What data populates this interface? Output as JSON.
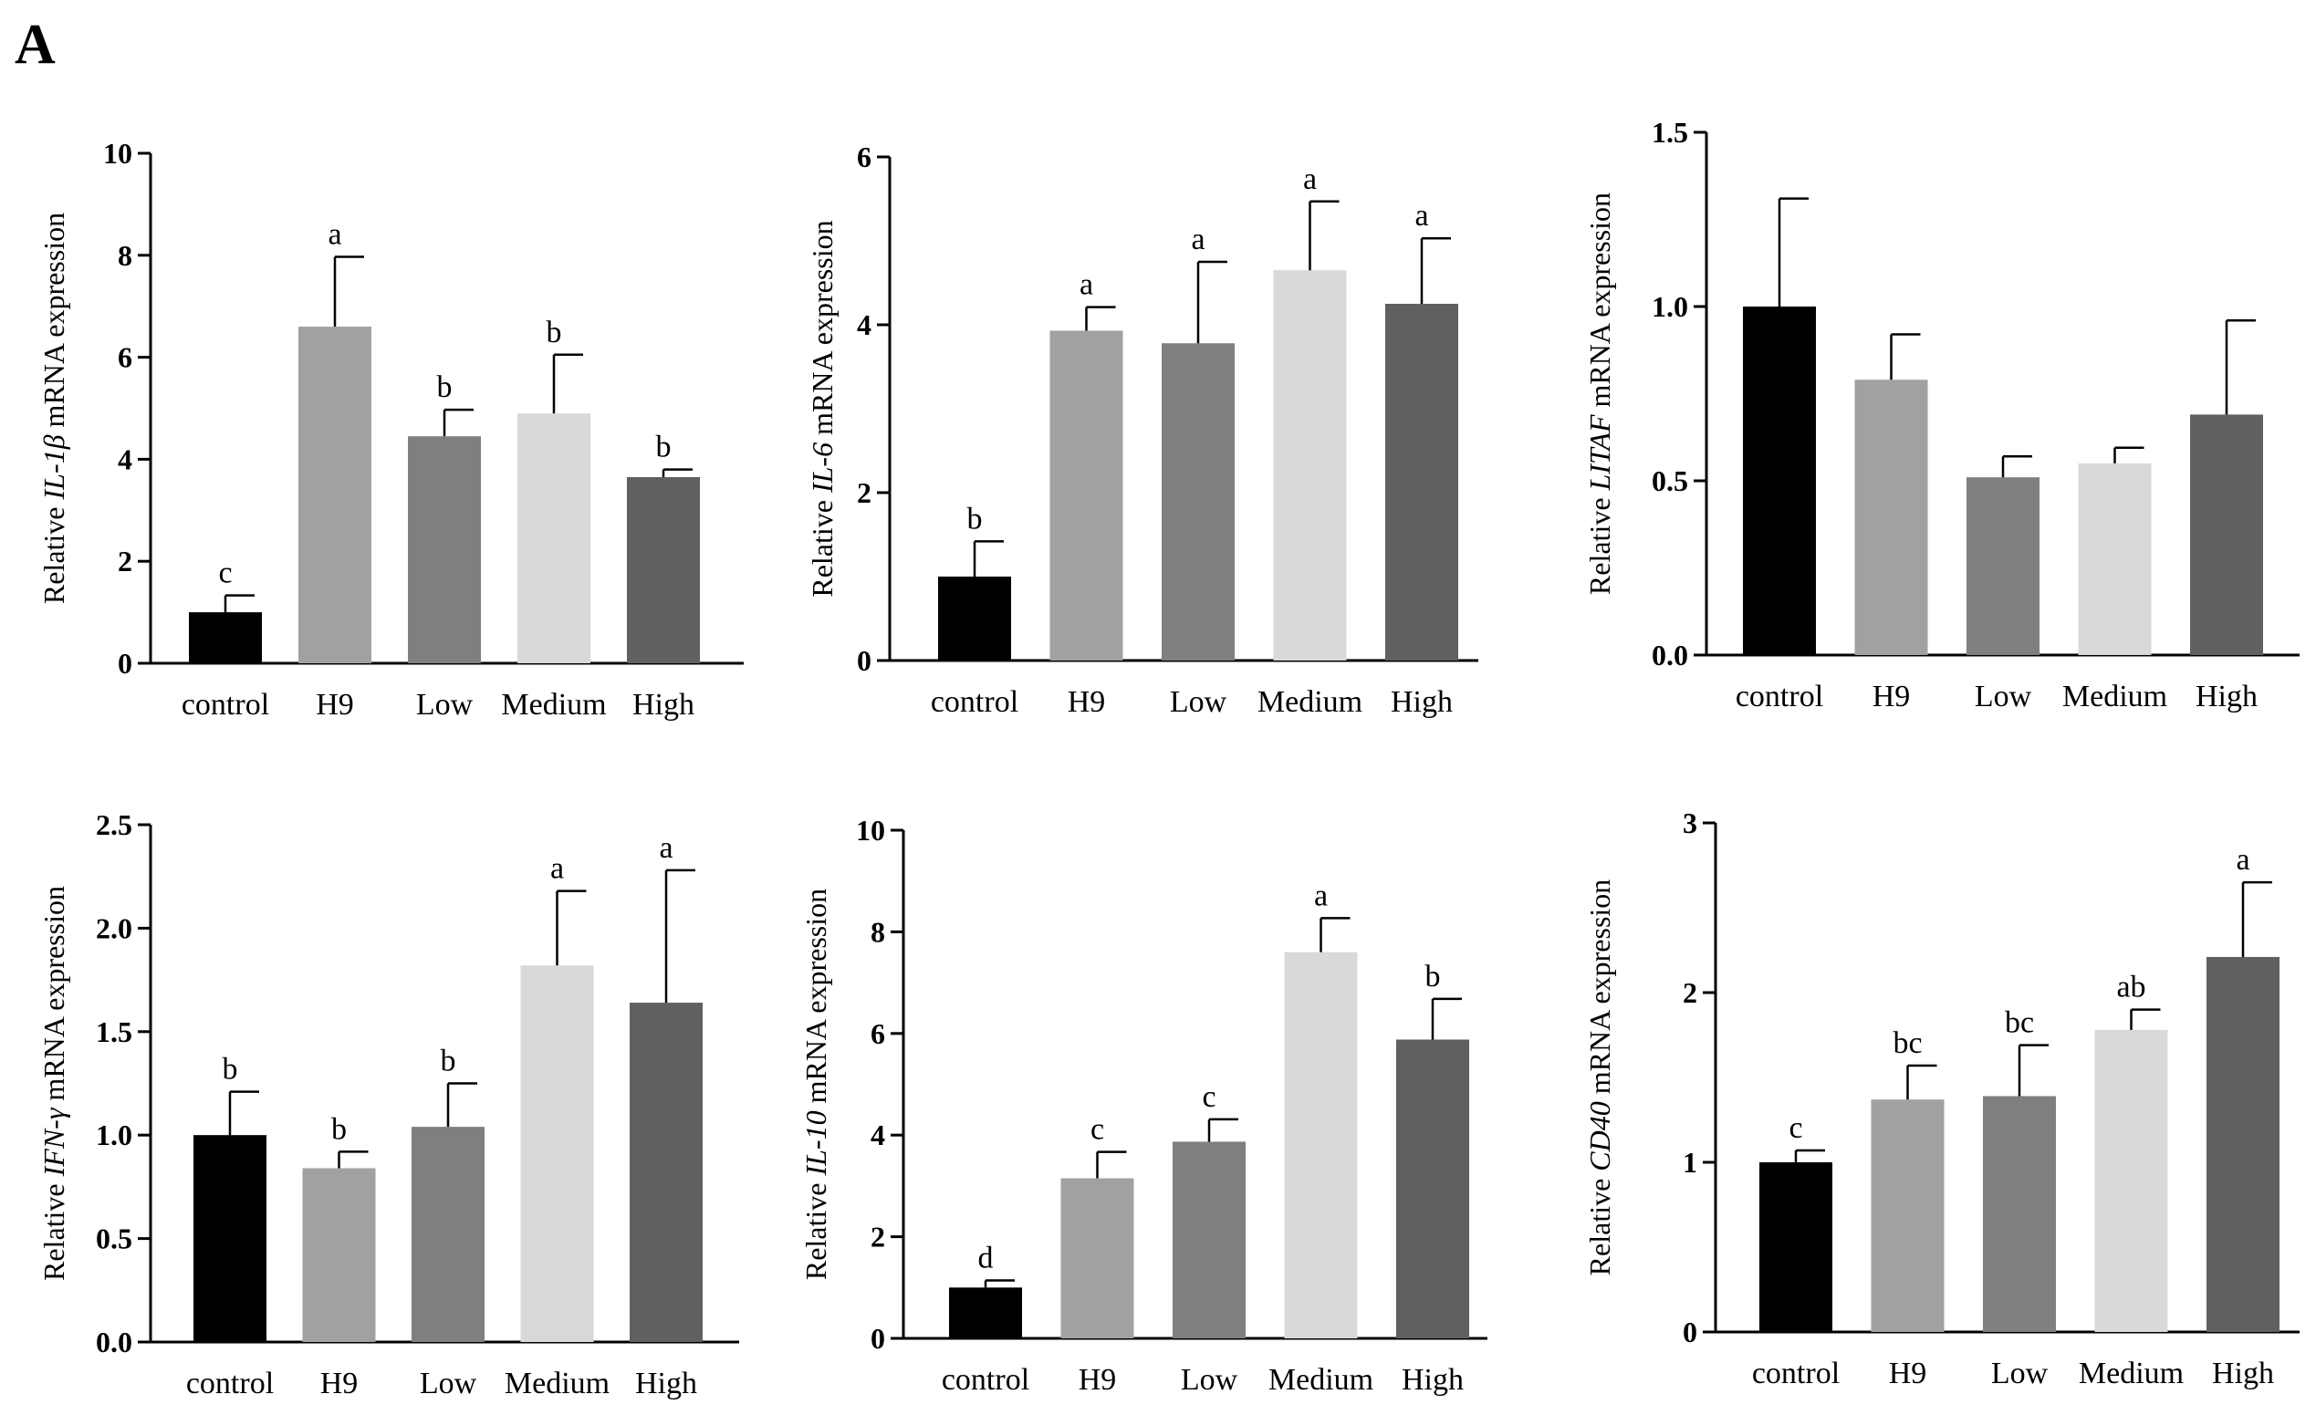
{
  "panel_label": "A",
  "colors": [
    "#000000",
    "#a1a1a4",
    "#7f7f7f",
    "#d9d9d9",
    "#606060"
  ],
  "chart_data": [
    {
      "type": "bar",
      "title": "",
      "ylabel": {
        "prefix": "Relative ",
        "gene": "IL-1β",
        "suffix": " mRNA expression"
      },
      "categories": [
        "control",
        "H9",
        "Low",
        "Medium",
        "High"
      ],
      "values": [
        1.0,
        6.6,
        4.45,
        4.9,
        3.65
      ],
      "errors": [
        0.33,
        1.37,
        0.52,
        1.15,
        0.15
      ],
      "letters": [
        "c",
        "a",
        "b",
        "b",
        "b"
      ],
      "ylim": [
        0,
        10
      ],
      "yticks": [
        0,
        2,
        4,
        6,
        8,
        10
      ],
      "ytick_labels": [
        "0",
        "2",
        "4",
        "6",
        "8",
        "10"
      ]
    },
    {
      "type": "bar",
      "title": "",
      "ylabel": {
        "prefix": "Relative ",
        "gene": "IL-6",
        "suffix": " mRNA expression"
      },
      "categories": [
        "control",
        "H9",
        "Low",
        "Medium",
        "High"
      ],
      "values": [
        1.0,
        3.93,
        3.78,
        4.65,
        4.25
      ],
      "errors": [
        0.42,
        0.28,
        0.97,
        0.82,
        0.78
      ],
      "letters": [
        "b",
        "a",
        "a",
        "a",
        "a"
      ],
      "ylim": [
        0,
        6
      ],
      "yticks": [
        0,
        2,
        4,
        6
      ],
      "ytick_labels": [
        "0",
        "2",
        "4",
        "6"
      ]
    },
    {
      "type": "bar",
      "title": "",
      "ylabel": {
        "prefix": "Relative ",
        "gene": "LITAF",
        "suffix": " mRNA expression"
      },
      "categories": [
        "control",
        "H9",
        "Low",
        "Medium",
        "High"
      ],
      "values": [
        1.0,
        0.79,
        0.51,
        0.55,
        0.69
      ],
      "errors": [
        0.31,
        0.13,
        0.06,
        0.045,
        0.27
      ],
      "letters": [
        "",
        "",
        "",
        "",
        ""
      ],
      "ylim": [
        0,
        1.5
      ],
      "yticks": [
        0,
        0.5,
        1.0,
        1.5
      ],
      "ytick_labels": [
        "0.0",
        "0.5",
        "1.0",
        "1.5"
      ]
    },
    {
      "type": "bar",
      "title": "",
      "ylabel": {
        "prefix": "Relative ",
        "gene": "IFN-γ",
        "suffix": " mRNA expression"
      },
      "categories": [
        "control",
        "H9",
        "Low",
        "Medium",
        "High"
      ],
      "values": [
        1.0,
        0.84,
        1.04,
        1.82,
        1.64
      ],
      "errors": [
        0.21,
        0.08,
        0.21,
        0.36,
        0.64
      ],
      "letters": [
        "b",
        "b",
        "b",
        "a",
        "a"
      ],
      "ylim": [
        0,
        2.5
      ],
      "yticks": [
        0,
        0.5,
        1.0,
        1.5,
        2.0,
        2.5
      ],
      "ytick_labels": [
        "0.0",
        "0.5",
        "1.0",
        "1.5",
        "2.0",
        "2.5"
      ]
    },
    {
      "type": "bar",
      "title": "",
      "ylabel": {
        "prefix": "Relative ",
        "gene": "IL-10",
        "suffix": " mRNA expression"
      },
      "categories": [
        "control",
        "H9",
        "Low",
        "Medium",
        "High"
      ],
      "values": [
        1.0,
        3.15,
        3.87,
        7.6,
        5.88
      ],
      "errors": [
        0.14,
        0.52,
        0.44,
        0.67,
        0.8
      ],
      "letters": [
        "d",
        "c",
        "c",
        "a",
        "b"
      ],
      "ylim": [
        0,
        10
      ],
      "yticks": [
        0,
        2,
        4,
        6,
        8,
        10
      ],
      "ytick_labels": [
        "0",
        "2",
        "4",
        "6",
        "8",
        "10"
      ]
    },
    {
      "type": "bar",
      "title": "",
      "ylabel": {
        "prefix": "Relative ",
        "gene": "CD40",
        "suffix": " mRNA expression"
      },
      "categories": [
        "control",
        "H9",
        "Low",
        "Medium",
        "High"
      ],
      "values": [
        1.0,
        1.37,
        1.39,
        1.78,
        2.21
      ],
      "errors": [
        0.07,
        0.2,
        0.3,
        0.12,
        0.44
      ],
      "letters": [
        "c",
        "bc",
        "bc",
        "ab",
        "a"
      ],
      "ylim": [
        0,
        3
      ],
      "yticks": [
        0,
        1,
        2,
        3
      ],
      "ytick_labels": [
        "0",
        "1",
        "2",
        "3"
      ]
    }
  ]
}
